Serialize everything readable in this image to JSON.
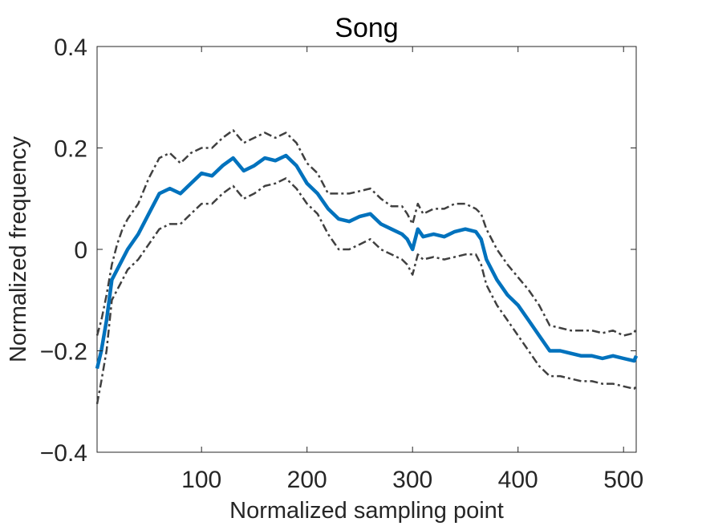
{
  "chart_data": {
    "type": "line",
    "title": "Song",
    "xlabel": "Normalized sampling point",
    "ylabel": "Normalized frequency",
    "xlim": [
      1,
      512
    ],
    "ylim": [
      -0.4,
      0.4
    ],
    "xticks": [
      100,
      200,
      300,
      400,
      500
    ],
    "xtick_labels": [
      "100",
      "200",
      "300",
      "400",
      "500"
    ],
    "yticks": [
      -0.4,
      -0.2,
      0,
      0.2,
      0.4
    ],
    "ytick_labels": [
      "−0.4",
      "−0.2",
      "0",
      "0.2",
      "0.4"
    ],
    "grid": false,
    "legend": "none",
    "x": [
      1,
      5,
      10,
      15,
      20,
      25,
      30,
      40,
      50,
      60,
      70,
      80,
      90,
      100,
      110,
      120,
      130,
      140,
      150,
      160,
      170,
      180,
      190,
      200,
      210,
      220,
      230,
      240,
      250,
      260,
      270,
      280,
      290,
      295,
      300,
      305,
      310,
      320,
      330,
      340,
      350,
      360,
      365,
      370,
      380,
      390,
      400,
      410,
      420,
      430,
      440,
      450,
      460,
      470,
      480,
      490,
      500,
      510,
      512
    ],
    "series": [
      {
        "color": "#0072BD",
        "style": "solid",
        "values": [
          -0.235,
          -0.2,
          -0.14,
          -0.06,
          -0.04,
          -0.02,
          0.0,
          0.03,
          0.07,
          0.11,
          0.12,
          0.11,
          0.13,
          0.15,
          0.145,
          0.165,
          0.18,
          0.155,
          0.165,
          0.18,
          0.175,
          0.185,
          0.165,
          0.13,
          0.11,
          0.08,
          0.06,
          0.055,
          0.065,
          0.07,
          0.05,
          0.04,
          0.03,
          0.02,
          0.0,
          0.04,
          0.025,
          0.03,
          0.025,
          0.035,
          0.04,
          0.035,
          0.02,
          -0.02,
          -0.06,
          -0.09,
          -0.11,
          -0.14,
          -0.17,
          -0.2,
          -0.2,
          -0.205,
          -0.21,
          -0.21,
          -0.215,
          -0.21,
          -0.215,
          -0.22,
          -0.21
        ]
      },
      {
        "color": "#404040",
        "style": "dashdot",
        "values": [
          -0.17,
          -0.14,
          -0.09,
          -0.03,
          0.01,
          0.04,
          0.06,
          0.09,
          0.14,
          0.18,
          0.19,
          0.17,
          0.19,
          0.2,
          0.2,
          0.22,
          0.235,
          0.21,
          0.22,
          0.23,
          0.22,
          0.23,
          0.21,
          0.17,
          0.15,
          0.11,
          0.11,
          0.11,
          0.115,
          0.12,
          0.1,
          0.085,
          0.085,
          0.07,
          0.05,
          0.09,
          0.07,
          0.08,
          0.08,
          0.09,
          0.09,
          0.08,
          0.07,
          0.04,
          0.0,
          -0.03,
          -0.055,
          -0.08,
          -0.11,
          -0.15,
          -0.155,
          -0.16,
          -0.16,
          -0.16,
          -0.165,
          -0.16,
          -0.17,
          -0.165,
          -0.155
        ]
      },
      {
        "color": "#404040",
        "style": "dashdot",
        "values": [
          -0.305,
          -0.26,
          -0.2,
          -0.1,
          -0.08,
          -0.06,
          -0.04,
          -0.02,
          0.01,
          0.04,
          0.05,
          0.05,
          0.07,
          0.09,
          0.09,
          0.11,
          0.125,
          0.1,
          0.11,
          0.125,
          0.13,
          0.14,
          0.12,
          0.09,
          0.07,
          0.03,
          0.0,
          0.0,
          0.01,
          0.02,
          0.0,
          -0.01,
          -0.02,
          -0.03,
          -0.05,
          -0.01,
          -0.02,
          -0.015,
          -0.02,
          -0.015,
          -0.01,
          -0.01,
          -0.03,
          -0.07,
          -0.11,
          -0.14,
          -0.17,
          -0.2,
          -0.23,
          -0.25,
          -0.25,
          -0.255,
          -0.26,
          -0.26,
          -0.265,
          -0.265,
          -0.27,
          -0.275,
          -0.27
        ]
      }
    ]
  }
}
